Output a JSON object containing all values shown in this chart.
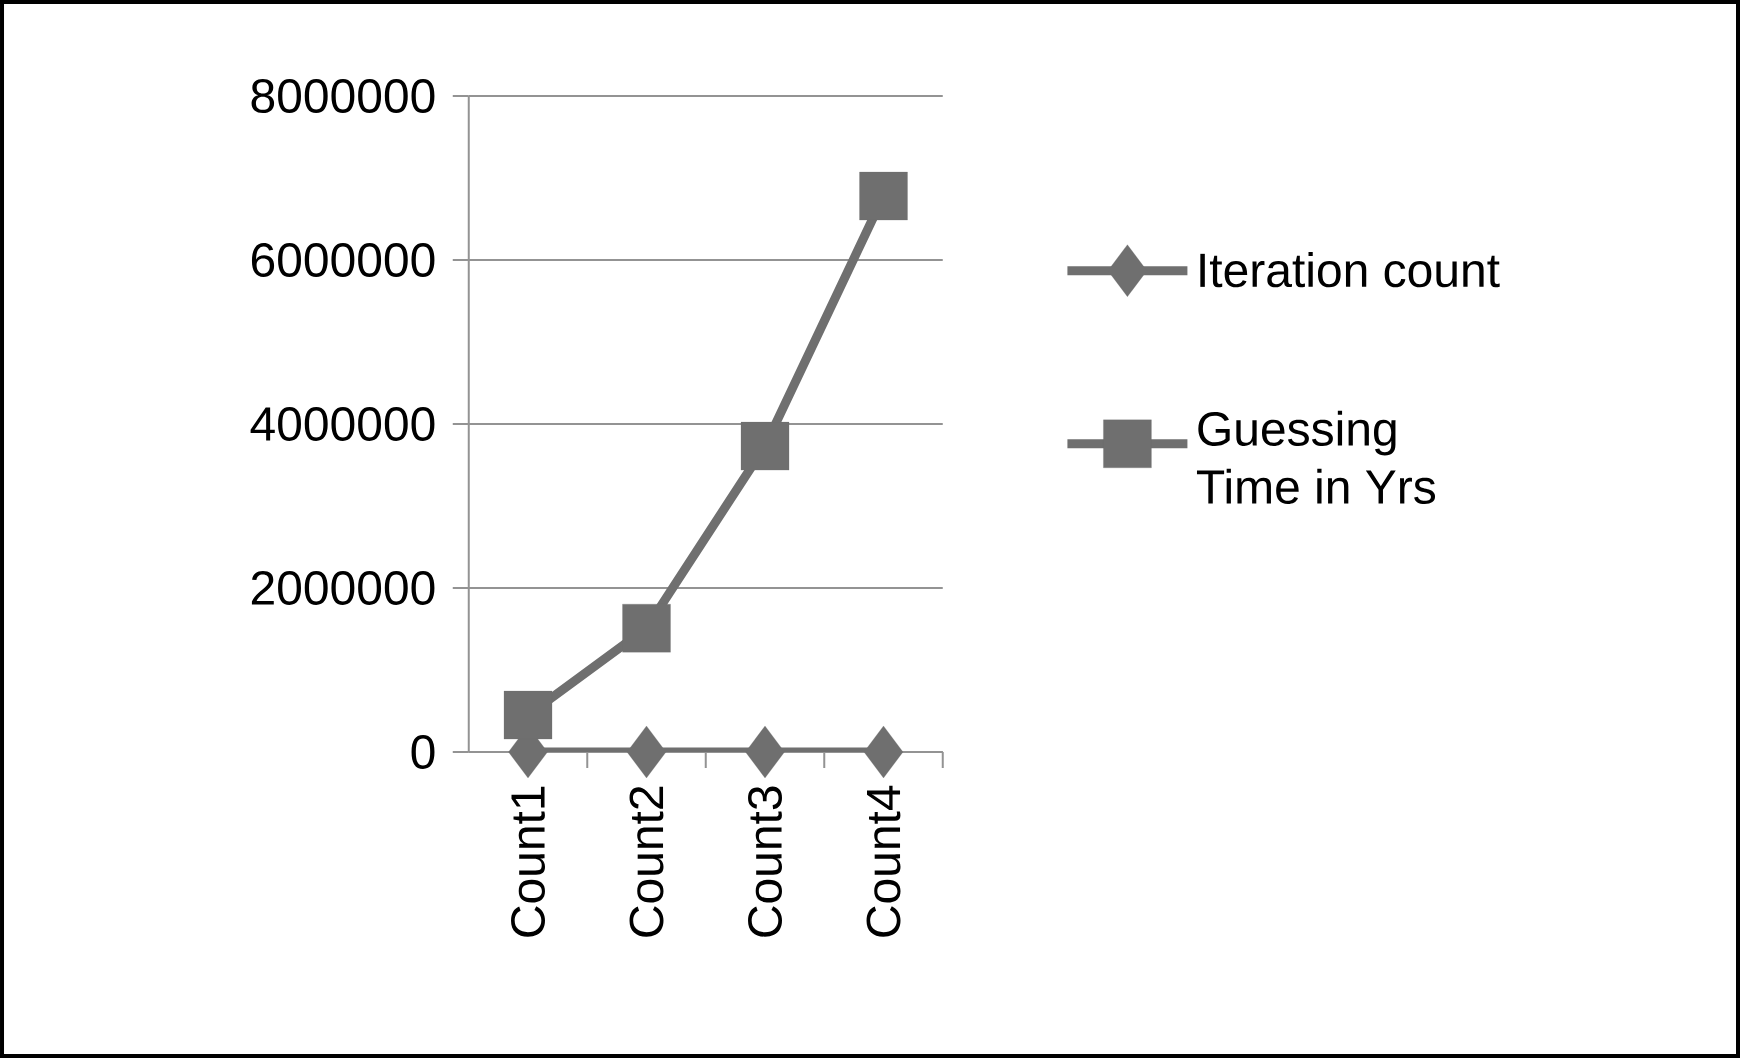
{
  "chart_data": {
    "type": "line",
    "categories": [
      "Count1",
      "Count2",
      "Count3",
      "Count4"
    ],
    "series": [
      {
        "name": "Iteration count",
        "color": "#6f6f6f",
        "marker": "diamond",
        "values": [
          0,
          0,
          0,
          0
        ]
      },
      {
        "name": "Guessing Time in Yrs",
        "color": "#6f6f6f",
        "marker": "square",
        "values": [
          450000,
          1510000,
          3730000,
          6780000
        ]
      }
    ],
    "ylim": [
      0,
      8000000
    ],
    "yticks": [
      0,
      2000000,
      4000000,
      6000000,
      8000000
    ],
    "grid": "y",
    "legend": "right"
  }
}
